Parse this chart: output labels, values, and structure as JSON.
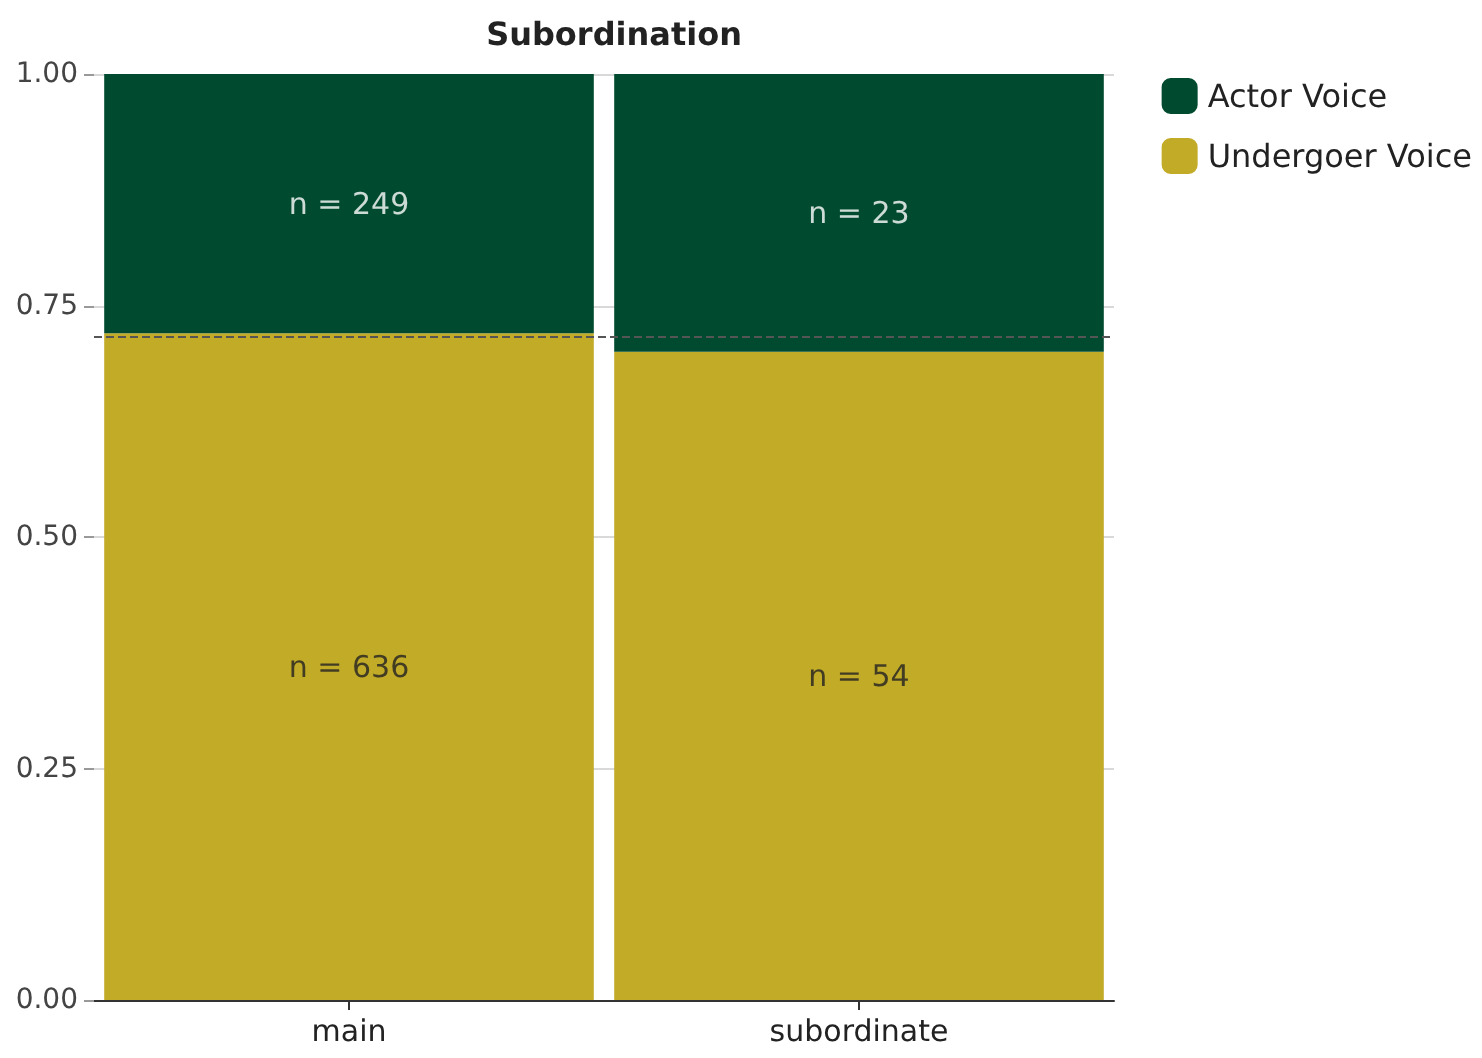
{
  "chart_data": {
    "type": "bar",
    "title": "Subordination",
    "categories": [
      "main",
      "subordinate"
    ],
    "stacked": true,
    "series": [
      {
        "name": "Undergoer Voice",
        "color": "#c2ab27",
        "values": [
          0.72,
          0.7
        ]
      },
      {
        "name": "Actor Voice",
        "color": "#004a2f",
        "values": [
          0.28,
          0.3
        ]
      }
    ],
    "ylim": [
      0,
      1
    ],
    "yticks": [
      {
        "value": 0,
        "label": "0.00"
      },
      {
        "value": 0.25,
        "label": "0.25"
      },
      {
        "value": 0.5,
        "label": "0.50"
      },
      {
        "value": 0.75,
        "label": "0.75"
      },
      {
        "value": 1,
        "label": "1.00"
      }
    ],
    "grid": "y",
    "legend": "top right",
    "annotations": [
      "n = 636",
      "n = 54",
      "n = 249",
      "n = 23"
    ],
    "ref_lines": [
      {
        "axis": "y",
        "value": 0.717,
        "line_style": "dashed",
        "color": "#555555"
      }
    ]
  }
}
